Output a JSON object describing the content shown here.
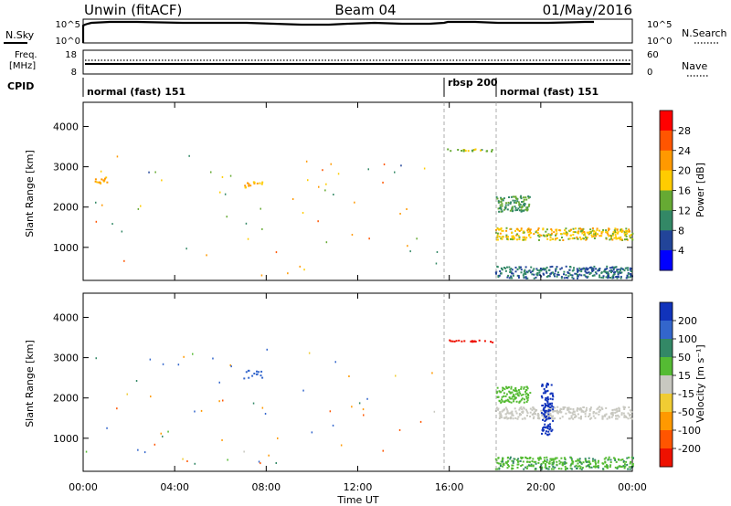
{
  "header": {
    "station": "Unwin (fitACF)",
    "beam": "Beam 04",
    "date": "01/May/2016"
  },
  "strip": {
    "nsky_label": "N.Sky",
    "nsky_ticks": [
      "10^5",
      "10^0"
    ],
    "nsearch_ticks": [
      "10^5",
      "10^0"
    ],
    "nsearch_label": "N.Search",
    "freq_label_1": "Freq.",
    "freq_label_2": "[MHz]",
    "freq_ticks": [
      "18",
      "8"
    ],
    "nave_ticks": [
      "60",
      "0"
    ],
    "nave_label": "Nave",
    "cpid_label": "CPID",
    "cpid_segments": [
      {
        "label": "normal (fast) 151",
        "start_hour": 0
      },
      {
        "label": "rbsp 200",
        "start_hour": 16
      },
      {
        "label": "normal (fast) 151",
        "start_hour": 18
      }
    ]
  },
  "axes": {
    "xlabel": "Time UT",
    "ylabel": "Slant Range [km]",
    "xticks": [
      "00:00",
      "04:00",
      "08:00",
      "12:00",
      "16:00",
      "20:00",
      "00:00"
    ],
    "yticks": [
      "1000",
      "2000",
      "3000",
      "4000"
    ],
    "x_range_hours": [
      0,
      24
    ],
    "y_range_km": [
      180,
      4600
    ]
  },
  "power_colorbar": {
    "label": "Power [dB]",
    "ticks": [
      "28",
      "24",
      "20",
      "16",
      "12",
      "8",
      "4"
    ],
    "colors": [
      "#ff0000",
      "#ff5500",
      "#ff9900",
      "#ffcc00",
      "#66aa33",
      "#338866",
      "#224499",
      "#0000ff"
    ]
  },
  "velocity_colorbar": {
    "label": "Velocity [m s⁻¹]",
    "ticks": [
      "200",
      "100",
      "50",
      "15",
      "-15",
      "-50",
      "-100",
      "-200"
    ],
    "colors": [
      "#1133bb",
      "#3366cc",
      "#338866",
      "#55bb33",
      "#c8c8c0",
      "#f0cc33",
      "#ff9900",
      "#ff5500",
      "#ee1100"
    ]
  },
  "chart_data": [
    {
      "type": "heatmap",
      "title": "Power [dB]",
      "xlabel": "Time UT",
      "ylabel": "Slant Range [km]",
      "xlim_hours": [
        0,
        24
      ],
      "ylim_km": [
        180,
        4600
      ],
      "vlines_hours": [
        16,
        18
      ],
      "features": [
        {
          "kind": "band",
          "t0": 15.9,
          "t1": 18.0,
          "r0": 3400,
          "r1": 3460,
          "value": 12
        },
        {
          "kind": "band",
          "t0": 18.0,
          "t1": 24.0,
          "r0": 1200,
          "r1": 1500,
          "value": 16
        },
        {
          "kind": "band",
          "t0": 18.0,
          "t1": 24.0,
          "r0": 250,
          "r1": 550,
          "value": 6
        },
        {
          "kind": "band",
          "t0": 18.0,
          "t1": 19.5,
          "r0": 1900,
          "r1": 2300,
          "value": 10
        },
        {
          "kind": "points",
          "t0": 0.5,
          "t1": 1.2,
          "r0": 2600,
          "r1": 2800,
          "value": 18
        },
        {
          "kind": "points",
          "t0": 7.0,
          "t1": 7.8,
          "r0": 2500,
          "r1": 2700,
          "value": 18
        }
      ]
    },
    {
      "type": "heatmap",
      "title": "Velocity [m s-1]",
      "xlabel": "Time UT",
      "ylabel": "Slant Range [km]",
      "xlim_hours": [
        0,
        24
      ],
      "ylim_km": [
        180,
        4600
      ],
      "vlines_hours": [
        16,
        18
      ],
      "features": [
        {
          "kind": "band",
          "t0": 15.9,
          "t1": 18.0,
          "r0": 3400,
          "r1": 3460,
          "value": -200
        },
        {
          "kind": "band",
          "t0": 18.0,
          "t1": 24.0,
          "r0": 1500,
          "r1": 1800,
          "value": 0
        },
        {
          "kind": "band",
          "t0": 18.0,
          "t1": 19.5,
          "r0": 1900,
          "r1": 2300,
          "value": 20
        },
        {
          "kind": "band",
          "t0": 18.0,
          "t1": 24.0,
          "r0": 250,
          "r1": 550,
          "value": 30
        },
        {
          "kind": "band",
          "t0": 20.0,
          "t1": 20.5,
          "r0": 1100,
          "r1": 2400,
          "value": 200
        },
        {
          "kind": "points",
          "t0": 7.0,
          "t1": 7.8,
          "r0": 2500,
          "r1": 2700,
          "value": 100
        }
      ]
    }
  ]
}
